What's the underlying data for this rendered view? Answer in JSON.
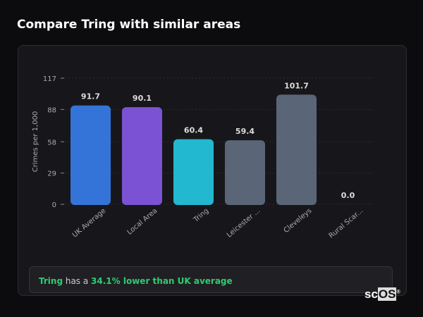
{
  "title": "Compare Tring with similar areas",
  "chart_data": {
    "type": "bar",
    "categories": [
      "UK Average",
      "Local Area",
      "Tring",
      "Leicester ...",
      "Cleveleys",
      "Rural Scar..."
    ],
    "values": [
      91.7,
      90.1,
      60.4,
      59.4,
      101.7,
      0.0
    ],
    "data_labels": [
      "91.7",
      "90.1",
      "60.4",
      "59.4",
      "101.7",
      "0.0"
    ],
    "colors": [
      "#3474d8",
      "#7b52d4",
      "#22b8cf",
      "#5a6678",
      "#5a6678",
      "#5a6678"
    ],
    "ylabel": "Crimes per 1,000",
    "yticks": [
      0,
      29,
      58,
      88,
      117
    ],
    "ylim": [
      0,
      117
    ],
    "grid": true
  },
  "summary": {
    "area": "Tring",
    "middle": " has a ",
    "comparison": "34.1% lower than UK average"
  },
  "logo": {
    "text_a": "sc",
    "text_b": "OS",
    "mark": "®"
  }
}
